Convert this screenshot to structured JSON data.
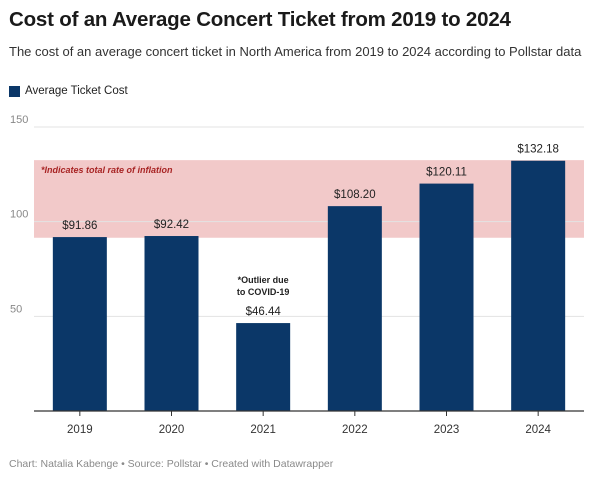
{
  "header": {
    "title": "Cost of an Average Concert Ticket from 2019 to 2024",
    "subtitle": "The cost of an average concert ticket in North America from 2019 to 2024 according to Pollstar data"
  },
  "legend": {
    "label": "Average Ticket Cost"
  },
  "colors": {
    "bar": "#0b3768",
    "band": "#f2c9c9",
    "band_text": "#a82424",
    "grid": "#e3e3e3",
    "axis": "#333333"
  },
  "chart_data": {
    "type": "bar",
    "categories": [
      "2019",
      "2020",
      "2021",
      "2022",
      "2023",
      "2024"
    ],
    "series": [
      {
        "name": "Average Ticket Cost",
        "values": [
          91.86,
          92.42,
          46.44,
          108.2,
          120.11,
          132.18
        ]
      }
    ],
    "value_labels": [
      "$91.86",
      "$92.42",
      "$46.44",
      "$108.20",
      "$120.11",
      "$132.18"
    ],
    "ylim": [
      0,
      150
    ],
    "yticks": [
      50,
      100,
      150
    ],
    "grid": true,
    "legend_position": "top-left",
    "band": {
      "from": 91.5,
      "to": 132.5,
      "label": "*Indicates total rate of inflation"
    },
    "annotations": [
      {
        "category": "2021",
        "lines": [
          "*Outlier due",
          "to COVID-19"
        ]
      }
    ]
  },
  "footer": {
    "text": "Chart: Natalia Kabenge • Source: Pollstar • Created with Datawrapper"
  }
}
